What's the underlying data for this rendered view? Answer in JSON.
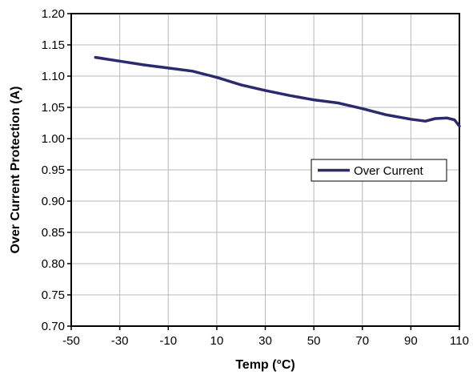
{
  "chart_data": {
    "type": "line",
    "xlabel": "Temp (°C)",
    "ylabel": "Over Current Protection (A)",
    "xlim": [
      -50,
      110
    ],
    "ylim": [
      0.7,
      1.2
    ],
    "x_ticks": [
      "-50",
      "-30",
      "-10",
      "10",
      "30",
      "50",
      "70",
      "90",
      "110"
    ],
    "y_ticks": [
      "0.70",
      "0.75",
      "0.80",
      "0.85",
      "0.90",
      "0.95",
      "1.00",
      "1.05",
      "1.10",
      "1.15",
      "1.20"
    ],
    "grid": true,
    "legend_position": "center-right",
    "series": [
      {
        "name": "Over Current",
        "color": "#2b2a6e",
        "x": [
          -40,
          -30,
          -20,
          -10,
          0,
          10,
          20,
          30,
          40,
          50,
          60,
          70,
          80,
          90,
          96,
          100,
          105,
          108,
          110
        ],
        "y": [
          1.13,
          1.124,
          1.118,
          1.113,
          1.108,
          1.098,
          1.086,
          1.077,
          1.069,
          1.062,
          1.057,
          1.048,
          1.038,
          1.031,
          1.028,
          1.032,
          1.033,
          1.03,
          1.02
        ]
      }
    ]
  }
}
